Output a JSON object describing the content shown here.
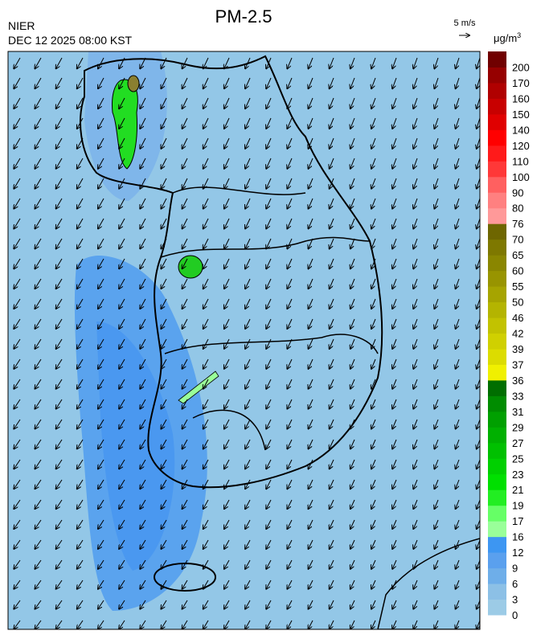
{
  "header": {
    "title": "PM-2.5",
    "source": "NIER",
    "timestamp": "DEC 12 2025 08:00 KST",
    "wind_scale": "5 m/s"
  },
  "colorbar": {
    "unit": "μg/m",
    "unit_sup": "3",
    "levels": [
      0,
      3,
      6,
      9,
      12,
      16,
      17,
      19,
      21,
      23,
      25,
      27,
      29,
      31,
      33,
      36,
      37,
      39,
      42,
      46,
      50,
      55,
      60,
      65,
      70,
      76,
      80,
      90,
      100,
      110,
      120,
      140,
      150,
      160,
      170,
      200
    ],
    "colors": [
      "#9ccbe6",
      "#8cc0e6",
      "#6eaee9",
      "#5aa0ee",
      "#3d96f2",
      "#99ff99",
      "#66ff66",
      "#22ee22",
      "#00e000",
      "#00d000",
      "#00c000",
      "#00b000",
      "#00a000",
      "#008c00",
      "#006e00",
      "#f0f000",
      "#dcdc00",
      "#d0d000",
      "#c2c200",
      "#b4b400",
      "#a6a400",
      "#989400",
      "#8a8600",
      "#7e7800",
      "#6e6600",
      "#ff9999",
      "#ff8080",
      "#ff6060",
      "#ff3838",
      "#ff1a1a",
      "#ff0000",
      "#e00000",
      "#c80000",
      "#b00000",
      "#960000",
      "#700000"
    ]
  }
}
